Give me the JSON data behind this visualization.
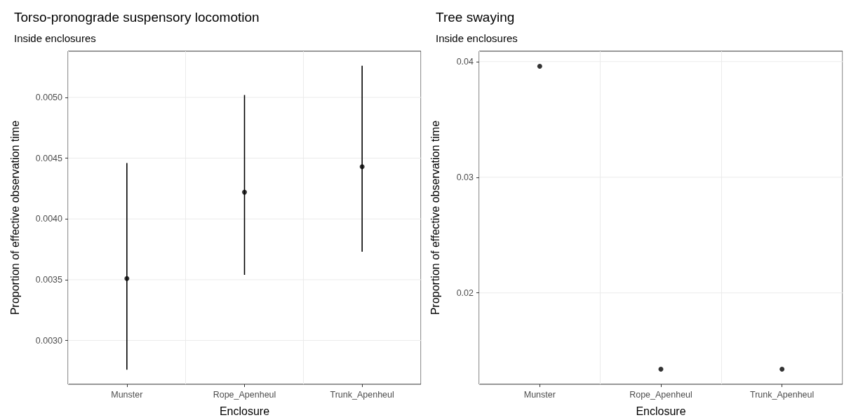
{
  "chart_data": [
    {
      "type": "scatter",
      "title": "Torso-pronograde suspensory locomotion",
      "subtitle": "Inside enclosures",
      "xlabel": "Enclosure",
      "ylabel": "Proportion of effective observation time",
      "categories": [
        "Munster",
        "Rope_Apenheul",
        "Trunk_Apenheul"
      ],
      "series": [
        {
          "color": "#000000",
          "values": [
            0.00351,
            0.00422,
            0.00443
          ],
          "errors": [
            [
              0.00276,
              0.00446
            ],
            [
              0.00354,
              0.00502
            ],
            [
              0.00373,
              0.00526
            ]
          ]
        }
      ],
      "ylim": [
        0.00264,
        0.00538
      ],
      "yticks": [
        {
          "value": 0.003,
          "label": "0.0030"
        },
        0.0035,
        {
          "value": 0.004,
          "label": "0.0040"
        },
        0.0045,
        {
          "value": 0.005,
          "label": "0.0050"
        }
      ],
      "grid": true,
      "marker": "circle"
    },
    {
      "type": "scatter",
      "title": "Tree swaying",
      "subtitle": "Inside enclosures",
      "xlabel": "Enclosure",
      "ylabel": "Proportion of effective observation time",
      "categories": [
        "Munster",
        "Rope_Apenheul",
        "Trunk_Apenheul"
      ],
      "series": [
        {
          "color": "#000000",
          "values": [
            0.0396,
            0.0134,
            0.0134
          ]
        }
      ],
      "ylim": [
        0.0121,
        0.0409
      ],
      "yticks": [
        0.02,
        0.03,
        0.04
      ],
      "grid": true,
      "marker": "circle"
    }
  ]
}
